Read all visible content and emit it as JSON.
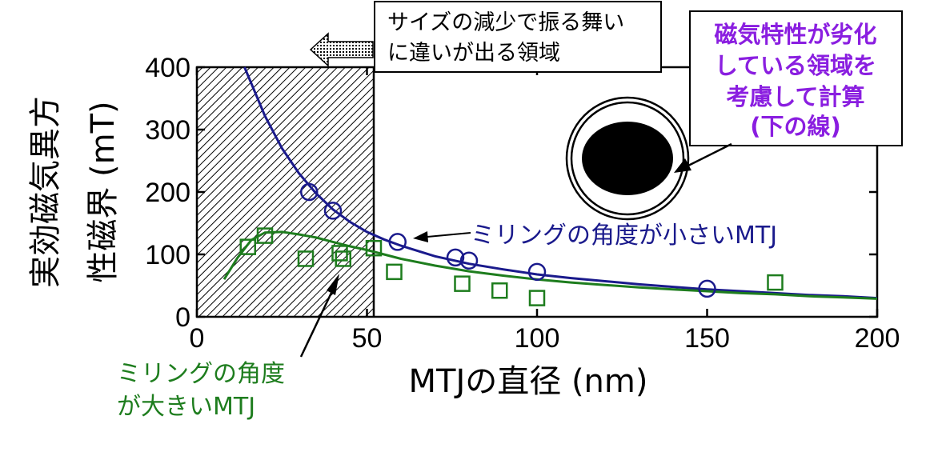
{
  "chart_data": {
    "type": "scatter",
    "xlabel": "MTJの直径 (nm)",
    "ylabel_line1": "実効磁気異方",
    "ylabel_line2": "性磁界 (mT)",
    "xlim": [
      0,
      200
    ],
    "ylim": [
      0,
      400
    ],
    "xticks": [
      "0",
      "50",
      "100",
      "150",
      "200"
    ],
    "yticks": [
      "0",
      "100",
      "200",
      "300",
      "400"
    ],
    "hatched_region": {
      "x_from": 0,
      "x_to": 52
    },
    "series": [
      {
        "name": "ミリングの角度が小さいMTJ",
        "color": "#1a1a8c",
        "marker": "circle",
        "points": [
          [
            33,
            200
          ],
          [
            40,
            170
          ],
          [
            59,
            120
          ],
          [
            76,
            95
          ],
          [
            80,
            90
          ],
          [
            100,
            72
          ],
          [
            150,
            45
          ]
        ],
        "fit": [
          [
            14,
            400
          ],
          [
            20,
            322
          ],
          [
            25,
            270
          ],
          [
            30,
            230
          ],
          [
            35,
            198
          ],
          [
            40,
            172
          ],
          [
            45,
            152
          ],
          [
            50,
            136
          ],
          [
            55,
            124
          ],
          [
            60,
            114
          ],
          [
            70,
            97
          ],
          [
            80,
            85
          ],
          [
            90,
            76
          ],
          [
            100,
            68
          ],
          [
            110,
            62
          ],
          [
            120,
            57
          ],
          [
            130,
            52
          ],
          [
            140,
            48
          ],
          [
            150,
            44
          ],
          [
            160,
            41
          ],
          [
            170,
            38
          ],
          [
            180,
            35
          ],
          [
            190,
            33
          ],
          [
            200,
            30
          ]
        ]
      },
      {
        "name": "ミリングの角度が大きいMTJ",
        "color": "#1e7d1e",
        "marker": "square",
        "points": [
          [
            15,
            112
          ],
          [
            20,
            130
          ],
          [
            32,
            93
          ],
          [
            42,
            102
          ],
          [
            43,
            93
          ],
          [
            52,
            110
          ],
          [
            58,
            72
          ],
          [
            78,
            53
          ],
          [
            89,
            42
          ],
          [
            100,
            30
          ],
          [
            170,
            55
          ]
        ],
        "fit": [
          [
            8,
            60
          ],
          [
            12,
            95
          ],
          [
            16,
            123
          ],
          [
            20,
            135
          ],
          [
            25,
            136
          ],
          [
            30,
            132
          ],
          [
            35,
            127
          ],
          [
            40,
            120
          ],
          [
            45,
            113
          ],
          [
            50,
            107
          ],
          [
            55,
            100
          ],
          [
            60,
            93
          ],
          [
            70,
            82
          ],
          [
            80,
            73
          ],
          [
            90,
            66
          ],
          [
            100,
            60
          ],
          [
            110,
            55
          ],
          [
            120,
            51
          ],
          [
            130,
            47
          ],
          [
            140,
            44
          ],
          [
            150,
            41
          ],
          [
            160,
            38
          ],
          [
            170,
            36
          ],
          [
            180,
            33
          ],
          [
            190,
            31
          ],
          [
            200,
            29
          ]
        ]
      }
    ],
    "annotations": {
      "region_box": [
        "サイズの減少で振る舞い",
        "に違いが出る領域"
      ],
      "purple_box": [
        "磁気特性が劣化",
        "している領域を",
        "考慮して計算",
        "(下の線)"
      ],
      "purple_color": "#8a1ee0",
      "small_angle_label": "ミリングの角度が小さいMTJ",
      "large_angle_label": [
        "ミリングの角度",
        "が大きいMTJ"
      ]
    }
  }
}
